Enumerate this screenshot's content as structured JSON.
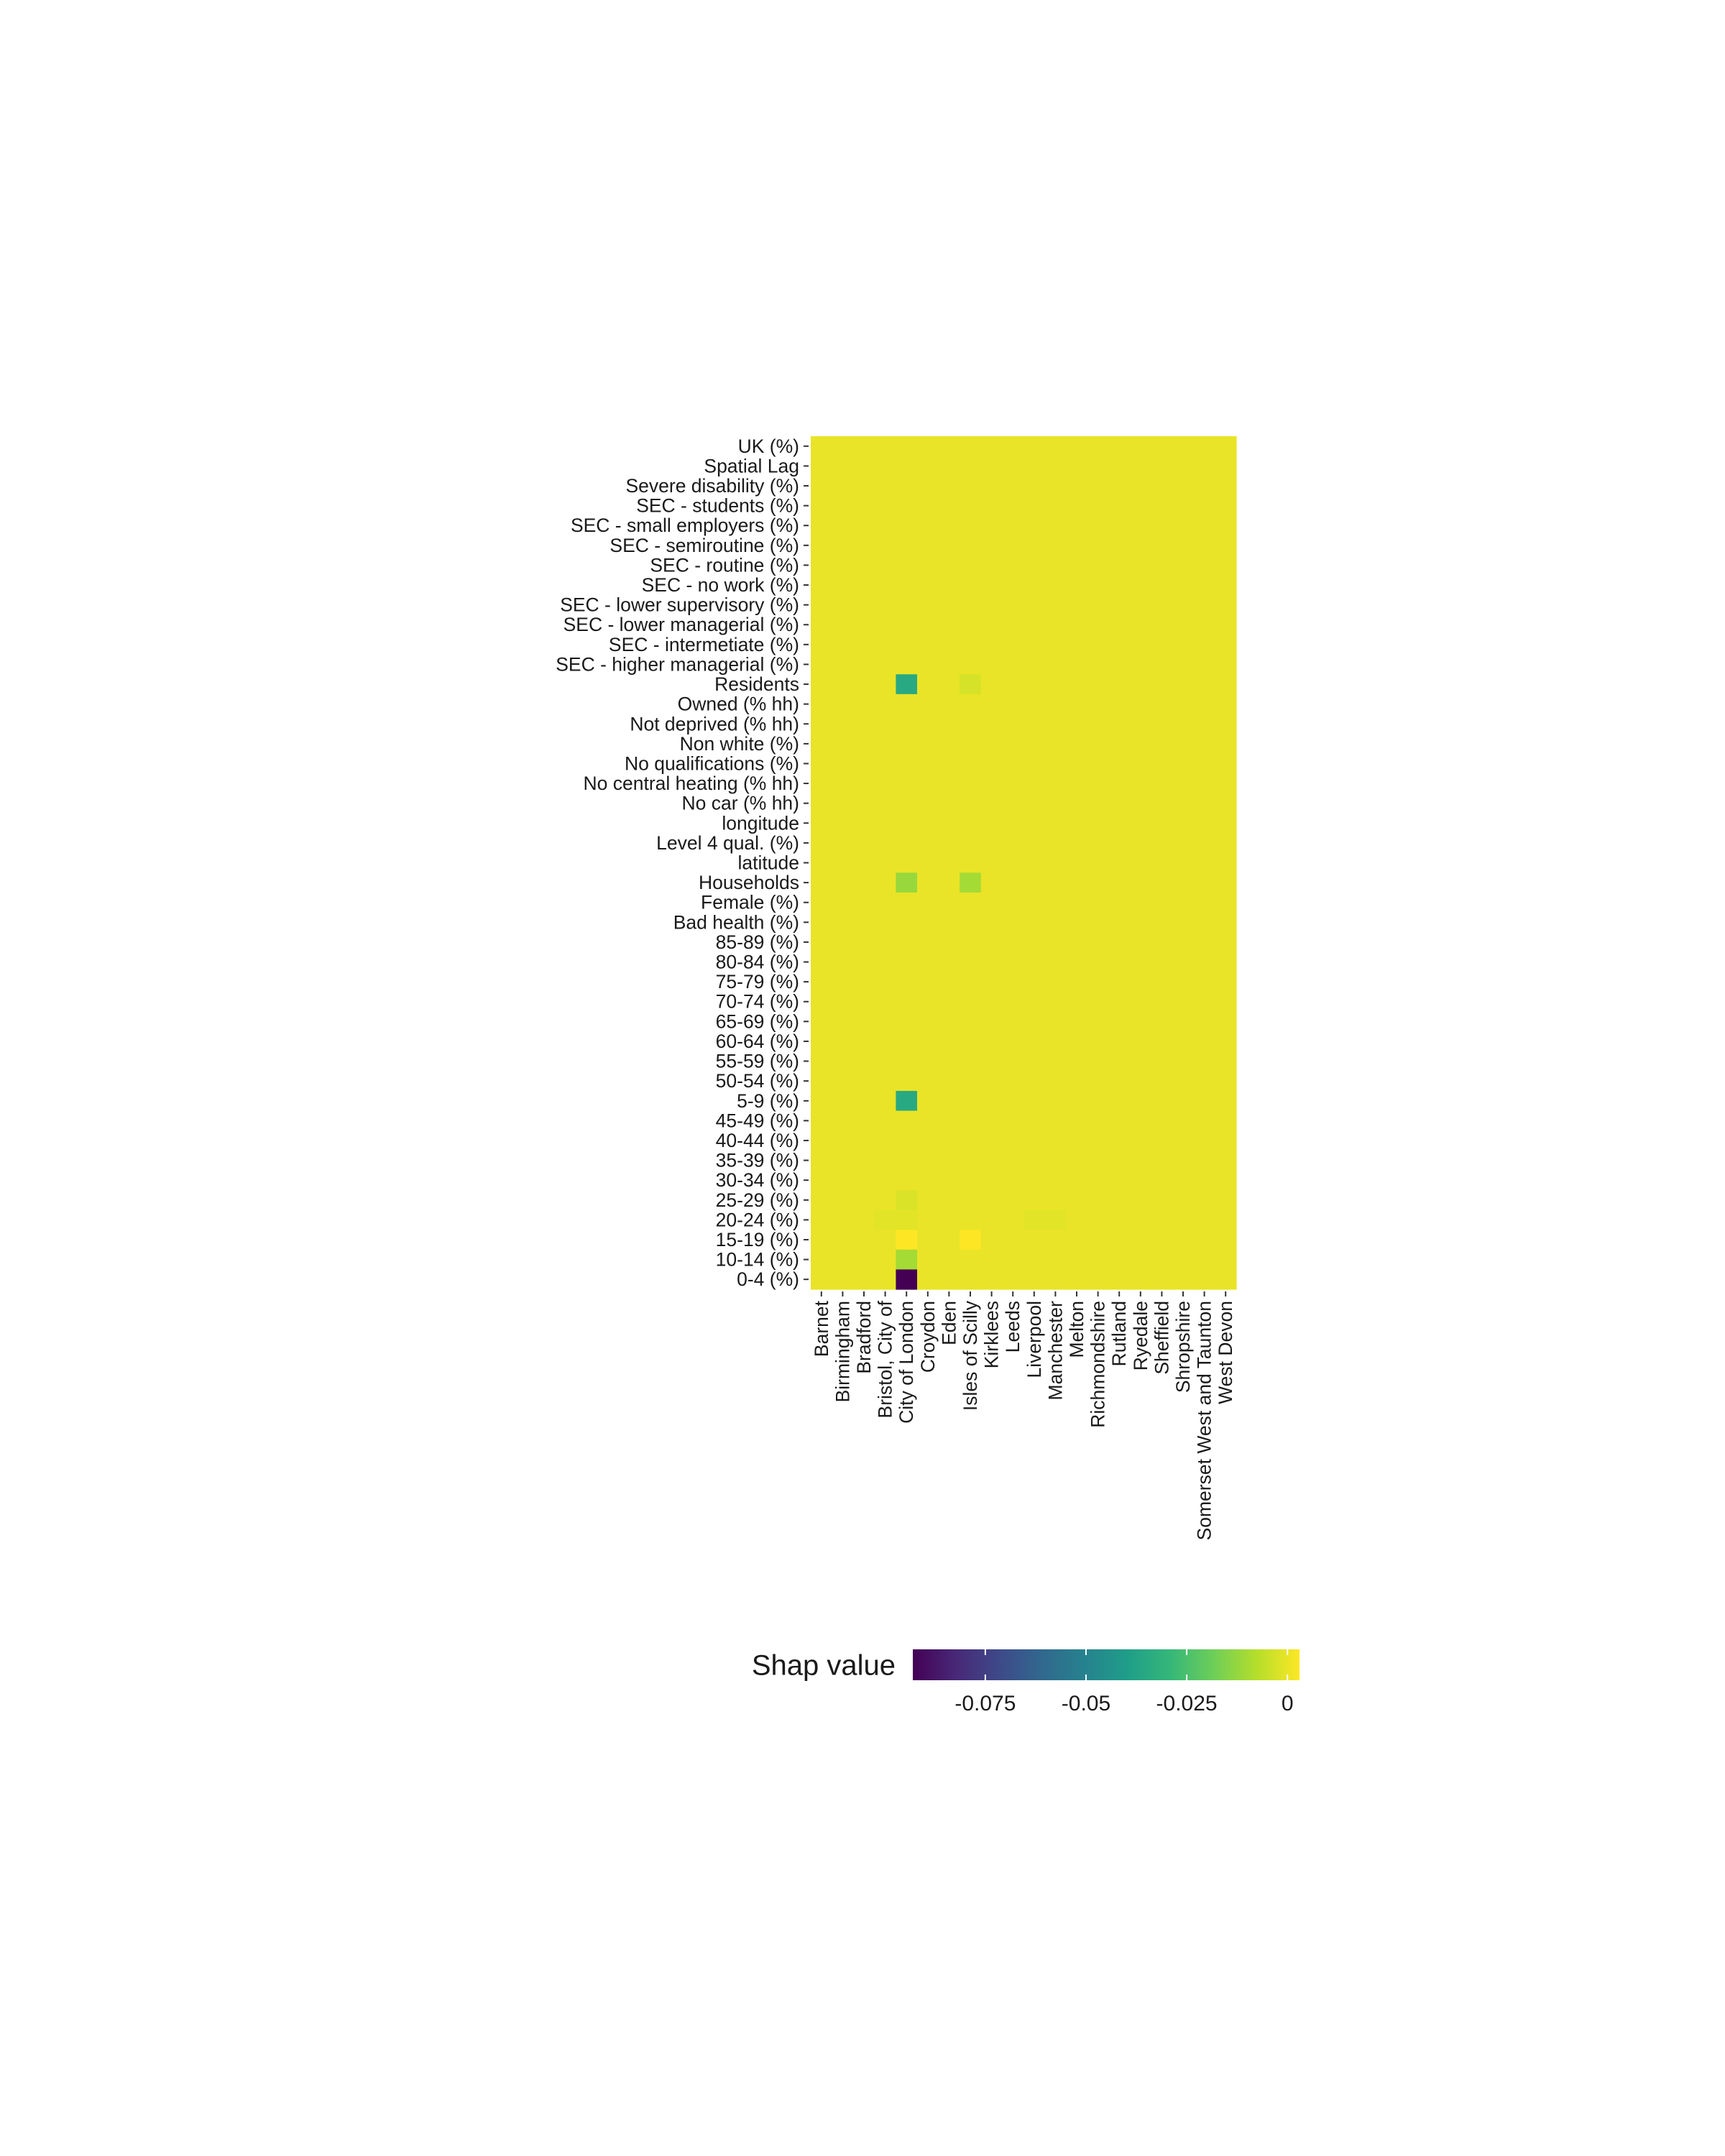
{
  "chart_data": {
    "type": "heatmap",
    "x_categories": [
      "Barnet",
      "Birmingham",
      "Bradford",
      "Bristol, City of",
      "City of London",
      "Croydon",
      "Eden",
      "Isles of Scilly",
      "Kirklees",
      "Leeds",
      "Liverpool",
      "Manchester",
      "Melton",
      "Richmondshire",
      "Rutland",
      "Ryedale",
      "Sheffield",
      "Shropshire",
      "Somerset West and Taunton",
      "West Devon"
    ],
    "y_categories": [
      "UK (%)",
      "Spatial Lag",
      "Severe disability (%)",
      "SEC - students (%)",
      "SEC - small employers (%)",
      "SEC - semiroutine (%)",
      "SEC - routine (%)",
      "SEC - no work (%)",
      "SEC - lower supervisory (%)",
      "SEC - lower managerial (%)",
      "SEC - intermetiate (%)",
      "SEC - higher managerial (%)",
      "Residents",
      "Owned (% hh)",
      "Not deprived (% hh)",
      "Non white (%)",
      "No qualifications (%)",
      "No central heating (% hh)",
      "No car (% hh)",
      "longitude",
      "Level 4 qual. (%)",
      "latitude",
      "Households",
      "Female (%)",
      "Bad health (%)",
      "85-89 (%)",
      "80-84 (%)",
      "75-79 (%)",
      "70-74 (%)",
      "65-69 (%)",
      "60-64 (%)",
      "55-59 (%)",
      "50-54 (%)",
      "5-9 (%)",
      "45-49 (%)",
      "40-44 (%)",
      "35-39 (%)",
      "30-34 (%)",
      "25-29 (%)",
      "20-24 (%)",
      "15-19 (%)",
      "10-14 (%)",
      "0-4 (%)"
    ],
    "default_value": 0,
    "nonzero_cells": [
      {
        "x": "City of London",
        "y": "Residents",
        "value": -0.035
      },
      {
        "x": "Isles of Scilly",
        "y": "Residents",
        "value": -0.003
      },
      {
        "x": "City of London",
        "y": "Households",
        "value": -0.012
      },
      {
        "x": "Isles of Scilly",
        "y": "Households",
        "value": -0.01
      },
      {
        "x": "City of London",
        "y": "5-9 (%)",
        "value": -0.035
      },
      {
        "x": "City of London",
        "y": "25-29 (%)",
        "value": -0.002
      },
      {
        "x": "Bristol, City of",
        "y": "20-24 (%)",
        "value": -0.001
      },
      {
        "x": "City of London",
        "y": "20-24 (%)",
        "value": -0.001
      },
      {
        "x": "Liverpool",
        "y": "20-24 (%)",
        "value": -0.001
      },
      {
        "x": "Manchester",
        "y": "20-24 (%)",
        "value": -0.001
      },
      {
        "x": "City of London",
        "y": "15-19 (%)",
        "value": 0.003
      },
      {
        "x": "Isles of Scilly",
        "y": "15-19 (%)",
        "value": 0.003
      },
      {
        "x": "City of London",
        "y": "10-14 (%)",
        "value": -0.01
      },
      {
        "x": "City of London",
        "y": "0-4 (%)",
        "value": -0.093
      }
    ],
    "color_scale": {
      "name": "viridis",
      "min": -0.093,
      "max": 0.003,
      "colors": [
        "#440154",
        "#482878",
        "#3e4989",
        "#31688e",
        "#26828e",
        "#1f9e89",
        "#35b779",
        "#6ece58",
        "#b5de2b",
        "#fde725"
      ]
    },
    "legend": {
      "title": "Shap value",
      "ticks": [
        -0.075,
        -0.05,
        -0.025,
        0
      ],
      "tick_labels": [
        "-0.075",
        "-0.05",
        "-0.025",
        "0"
      ],
      "position": "bottom"
    }
  }
}
